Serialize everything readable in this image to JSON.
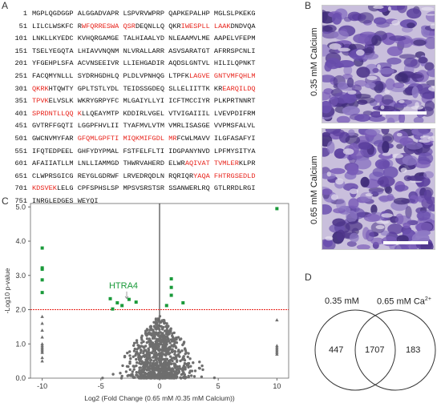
{
  "panels": {
    "a": "A",
    "b": "B",
    "c": "C",
    "d": "D"
  },
  "sequence": [
    {
      "num": "1",
      "parts": [
        {
          "t": "MGPLQGDGGP ALGGADVAPR LSPVRVWPRP QAPKEPALHP MGLSLPKEKG",
          "r": false
        }
      ]
    },
    {
      "num": "51",
      "parts": [
        {
          "t": "LILCLWSKFC R",
          "r": false
        },
        {
          "t": "WFQRRESWA QSR",
          "r": true
        },
        {
          "t": "DEQNLLQ QKR",
          "r": false
        },
        {
          "t": "IWESPLL LAAK",
          "r": true
        },
        {
          "t": "DNDVQA",
          "r": false
        }
      ]
    },
    {
      "num": "101",
      "parts": [
        {
          "t": "LNKLLKYEDC KVHQRGAMGE TALHIAALYD NLEAAMVLME AAPELVFEPM",
          "r": false
        }
      ]
    },
    {
      "num": "151",
      "parts": [
        {
          "t": "TSELYEGQTA LHIAVVNQNM NLVRALLARR ASVSARATGT AFRRSPCNLI",
          "r": false
        }
      ]
    },
    {
      "num": "201",
      "parts": [
        {
          "t": "YFGEHPLSFA ACVNSEEIVR LLIEHGADIR AQDSLGNTVL HILILQPNKT",
          "r": false
        }
      ]
    },
    {
      "num": "251",
      "parts": [
        {
          "t": "FACQMYNLLL SYDRHGDHLQ PLDLVPNHQG LTPFK",
          "r": false
        },
        {
          "t": "LAGVE GNTVMFQHLM",
          "r": true
        }
      ]
    },
    {
      "num": "301",
      "parts": [
        {
          "t": "QKRK",
          "r": true
        },
        {
          "t": "HTQWTY GPLTSTLYDL TEIDSSGDEQ SLLELIITTK KR",
          "r": false
        },
        {
          "t": "EARQILDQ",
          "r": true
        }
      ]
    },
    {
      "num": "351",
      "parts": [
        {
          "t": "TPVK",
          "r": true
        },
        {
          "t": "ELVSLK WKRYGRPYFC MLGAIYLLYI ICFTMCCIYR PLKPRTNNRT",
          "r": false
        }
      ]
    },
    {
      "num": "401",
      "parts": [
        {
          "t": "SPRDNTLLQQ K",
          "r": true
        },
        {
          "t": "LLQEAYMTP KDDIRLVGEL VTVIGAIIIL LVEVPDIFRM",
          "r": false
        }
      ]
    },
    {
      "num": "451",
      "parts": [
        {
          "t": "GVTRFFGQTI LGGPFHVLII TYAFMVLVTM VMRLISASGE VVPMSFALVL",
          "r": false
        }
      ]
    },
    {
      "num": "501",
      "parts": [
        {
          "t": "GWCNVMYFAR ",
          "r": false
        },
        {
          "t": "GFQMLGPFTI MIQKMIFGDL MR",
          "r": true
        },
        {
          "t": "FCWLMAVV ILGFASAFYI",
          "r": false
        }
      ]
    },
    {
      "num": "551",
      "parts": [
        {
          "t": "IFQTEDPEEL GHFYDYPMAL FSTFELFLTI IDGPANYNVD LPFMYSITYA",
          "r": false
        }
      ]
    },
    {
      "num": "601",
      "parts": [
        {
          "t": "AFAIIATLLM LNLLIAMMGD THWRVAHERD ELWR",
          "r": false
        },
        {
          "t": "AQIVAT TVMLER",
          "r": true
        },
        {
          "t": "KLPR",
          "r": false
        }
      ]
    },
    {
      "num": "651",
      "parts": [
        {
          "t": "CLWPRSGICG REYGLGDRWF LRVEDRQDLN RQRIQR",
          "r": false
        },
        {
          "t": "YAQA FHTRGSEDLD",
          "r": true
        }
      ]
    },
    {
      "num": "701",
      "parts": [
        {
          "t": "KDSVEK",
          "r": true
        },
        {
          "t": "LELG CPFSPHSLSP MPSVSRSTSR SSANWERLRQ GTLRRDLRGI",
          "r": false
        }
      ]
    },
    {
      "num": "751",
      "parts": [
        {
          "t": "INRGLEDGES WEYQI",
          "r": false
        }
      ]
    }
  ],
  "micrographs": [
    {
      "label": "0.35 mM Calcium"
    },
    {
      "label": "0.65 mM Calcium"
    }
  ],
  "chart_data": {
    "type": "scatter",
    "title": "",
    "xlabel": "Log2 (Fold Change (0.65 mM /0.35 mM Calcium))",
    "ylabel": "-Log10 p-value",
    "xlim": [
      -11,
      11
    ],
    "ylim": [
      0,
      5.1
    ],
    "x_ticks": [
      -10,
      -5,
      0,
      5,
      10
    ],
    "y_ticks": [
      0.0,
      1.0,
      2.0,
      3.0,
      4.0,
      5.0
    ],
    "threshold_y": 2.0,
    "annotation": {
      "text": "HTRA4",
      "x": -2.8,
      "y": 2.25
    },
    "series": [
      {
        "name": "",
        "color": "#1a9a3a",
        "marker": "square",
        "points": [
          [
            10,
            4.95
          ],
          [
            -10,
            3.8
          ],
          [
            -10,
            3.22
          ],
          [
            -10,
            3.18
          ],
          [
            -10,
            2.87
          ],
          [
            -10,
            2.5
          ],
          [
            1.0,
            2.9
          ],
          [
            1.0,
            2.65
          ],
          [
            1.0,
            2.42
          ],
          [
            2.0,
            2.2
          ],
          [
            0.6,
            2.12
          ],
          [
            -2.0,
            2.22
          ],
          [
            -3.2,
            2.12
          ],
          [
            -3.6,
            2.2
          ],
          [
            -4.0,
            2.02
          ],
          [
            -4.2,
            2.32
          ],
          [
            -2.6,
            2.3
          ]
        ]
      },
      {
        "name": "",
        "color": "#6e6e6e",
        "marker": "triangle",
        "points": [
          [
            -10,
            1.8
          ],
          [
            -10,
            1.6
          ],
          [
            -10,
            1.4
          ],
          [
            -10,
            1.2
          ],
          [
            -10,
            1.0
          ],
          [
            -10,
            0.95
          ],
          [
            -10,
            0.9
          ],
          [
            -10,
            0.85
          ],
          [
            -10,
            0.8
          ],
          [
            -10,
            0.75
          ],
          [
            -10,
            0.6
          ],
          [
            -10,
            0.5
          ],
          [
            10,
            1.7
          ],
          [
            10,
            0.95
          ],
          [
            10,
            0.9
          ],
          [
            10,
            0.85
          ],
          [
            10,
            0.8
          ],
          [
            10,
            0.75
          ],
          [
            10,
            0.7
          ]
        ]
      }
    ]
  },
  "venn": {
    "left_label": "0.35 mM",
    "right_label": "0.65 mM Ca",
    "right_label_sup": "2+",
    "left_only": "447",
    "overlap": "1707",
    "right_only": "183"
  }
}
